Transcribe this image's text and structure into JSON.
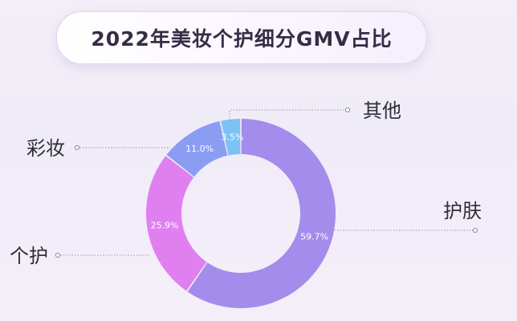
{
  "title": "2022年美妆个护细分GMV占比",
  "chart_data": {
    "type": "pie",
    "variant": "donut",
    "title": "2022年美妆个护细分GMV占比",
    "categories": [
      "护肤",
      "个护",
      "彩妆",
      "其他"
    ],
    "values": [
      59.7,
      25.9,
      11.0,
      3.5
    ],
    "value_labels": [
      "59.7%",
      "25.9%",
      "11.0%",
      "3.5%"
    ],
    "unit": "%",
    "colors": [
      "#a48cec",
      "#e07ff0",
      "#8b9cf3",
      "#7dc2f5"
    ],
    "legend": "none",
    "label_style": "callout"
  }
}
